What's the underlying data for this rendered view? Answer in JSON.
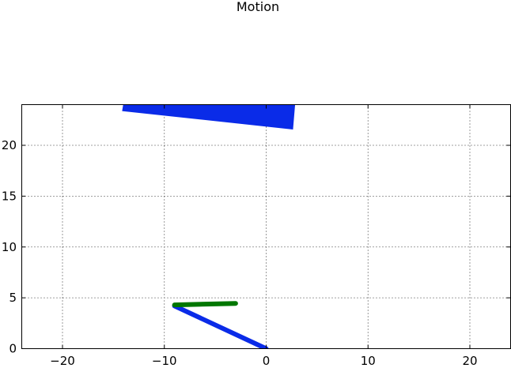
{
  "chart_data": {
    "type": "line",
    "title": "Motion",
    "xlabel": "",
    "ylabel": "",
    "xlim": [
      -24,
      24
    ],
    "ylim": [
      0,
      24
    ],
    "xticks": [
      -20,
      -10,
      0,
      10,
      20
    ],
    "xtick_labels": [
      "−20",
      "−10",
      "0",
      "10",
      "20"
    ],
    "yticks": [
      0,
      5,
      10,
      15,
      20
    ],
    "ytick_labels": [
      "0",
      "5",
      "10",
      "15",
      "20"
    ],
    "grid": true,
    "legend": "none",
    "shapes": [
      {
        "type": "polygon",
        "color": "#0a2be8",
        "points": [
          [
            -14.1,
            23.4
          ],
          [
            2.6,
            21.6
          ],
          [
            2.8,
            24
          ],
          [
            -14.0,
            24
          ]
        ]
      },
      {
        "type": "line",
        "color": "#0a2be8",
        "points": [
          [
            0,
            0
          ],
          [
            -9.0,
            4.2
          ]
        ]
      },
      {
        "type": "line",
        "color": "#007700",
        "points": [
          [
            -9.0,
            4.3
          ],
          [
            -3.0,
            4.45
          ]
        ]
      }
    ]
  }
}
